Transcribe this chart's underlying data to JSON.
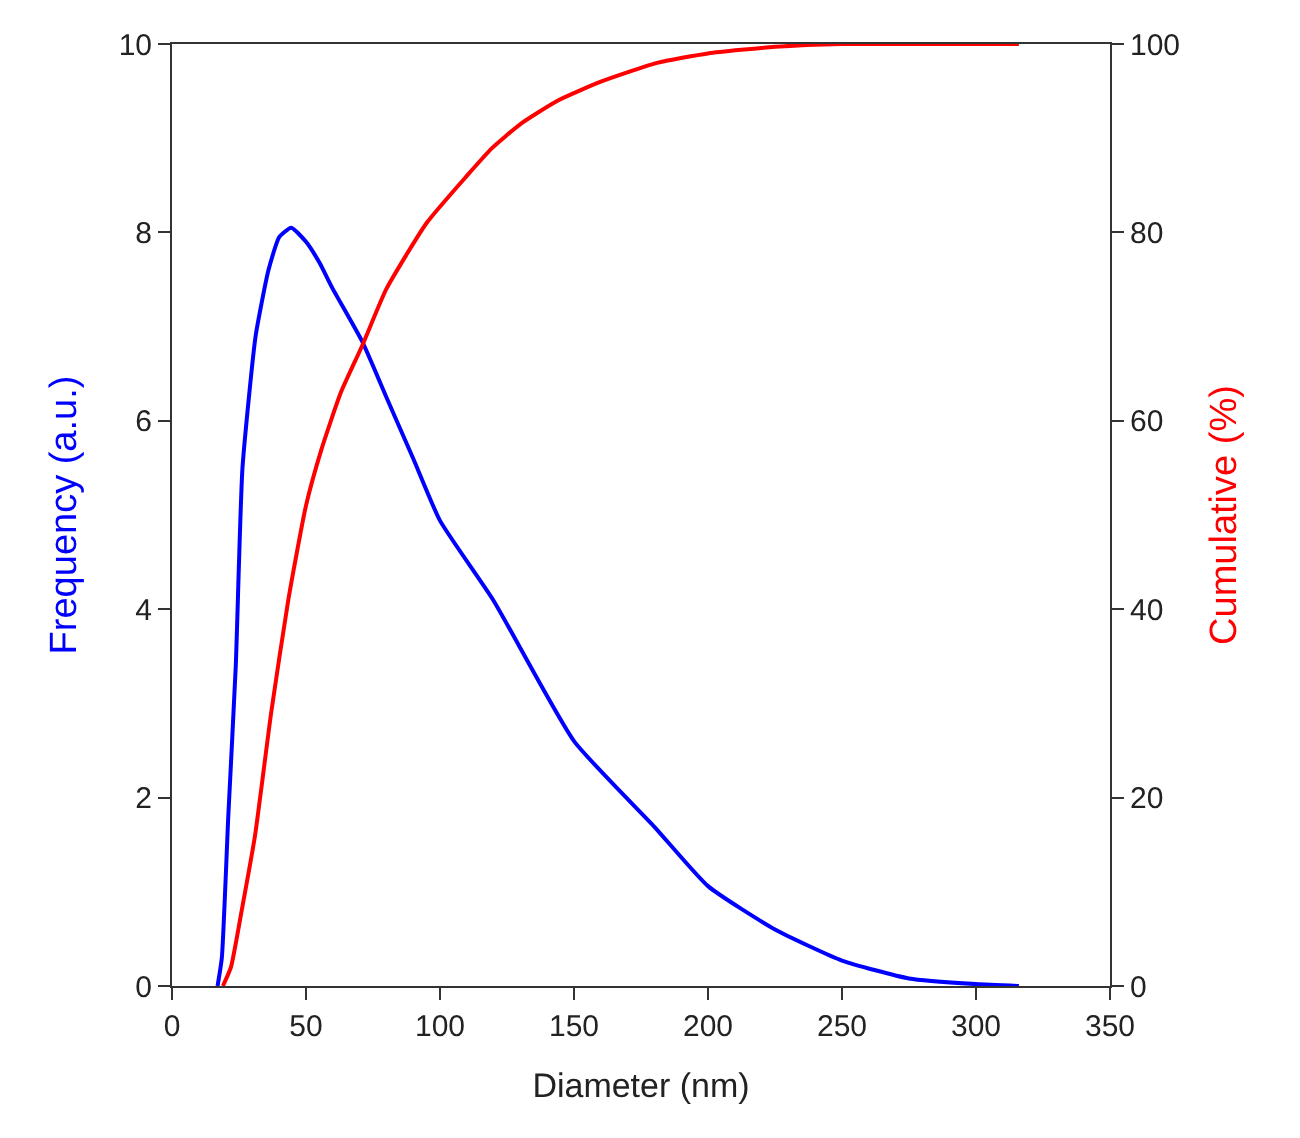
{
  "chart_data": {
    "type": "line",
    "xlabel": "Diameter (nm)",
    "ylabel": "Frequency (a.u.)",
    "y2label": "Cumulative (%)",
    "xlim": [
      0,
      350
    ],
    "xticks": [
      0,
      50,
      100,
      150,
      200,
      250,
      300,
      350
    ],
    "ylim": [
      0,
      10
    ],
    "yticks": [
      0,
      2,
      4,
      6,
      8,
      10
    ],
    "y2lim": [
      0,
      100
    ],
    "y2ticks": [
      0,
      20,
      40,
      60,
      80,
      100
    ],
    "marker": "none",
    "line_style": "solid",
    "series": [
      {
        "color": "#0000ff",
        "x": [
          17,
          18.6,
          21,
          23.8,
          26.3,
          31.2,
          36,
          40,
          44.5,
          50,
          55,
          60,
          71,
          80,
          90,
          100,
          120,
          150,
          180,
          200,
          225,
          250,
          275,
          300,
          316
        ],
        "values": [
          0,
          0.3,
          1.8,
          3.4,
          5.5,
          6.9,
          7.6,
          7.95,
          8.05,
          7.9,
          7.68,
          7.4,
          6.84,
          6.25,
          5.6,
          4.94,
          4.09,
          2.6,
          1.69,
          1.06,
          0.6,
          0.27,
          0.08,
          0.02,
          0
        ]
      },
      {
        "color": "#ff0000",
        "axis": "y2",
        "x": [
          19,
          22,
          26,
          31,
          37,
          43.4,
          50,
          55.8,
          63,
          71,
          80,
          95,
          110,
          119.6,
          130,
          144,
          160,
          181,
          200,
          225,
          250,
          280,
          316
        ],
        "values": [
          0,
          2,
          8,
          16,
          29,
          41,
          51,
          57,
          63,
          68,
          74,
          81,
          86,
          89,
          91.5,
          94,
          96,
          98,
          99,
          99.7,
          100,
          100,
          100
        ]
      }
    ]
  }
}
